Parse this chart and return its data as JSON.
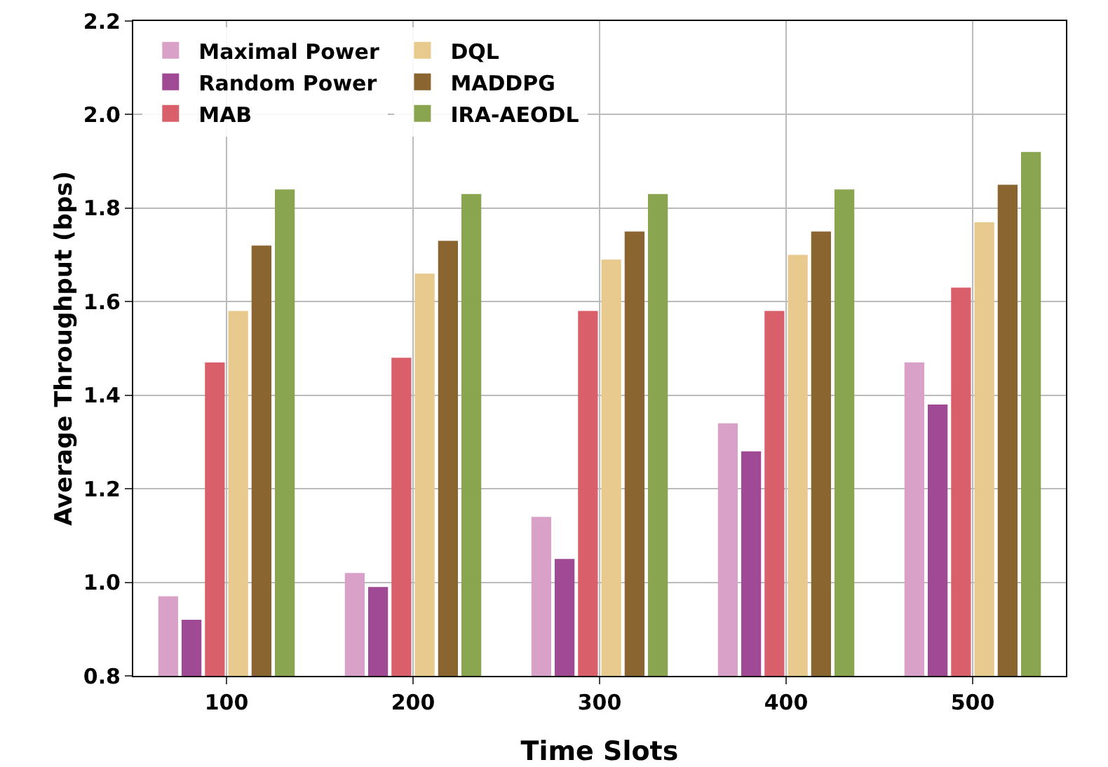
{
  "chart_data": {
    "type": "bar",
    "xlabel": "Time Slots",
    "ylabel": "Average Throughput (bps)",
    "categories": [
      "100",
      "200",
      "300",
      "400",
      "500"
    ],
    "series": [
      {
        "name": "Maximal Power",
        "color": "#d9a0c8",
        "values": [
          0.97,
          1.02,
          1.14,
          1.34,
          1.47
        ]
      },
      {
        "name": "Random Power",
        "color": "#a04a95",
        "values": [
          0.92,
          0.99,
          1.05,
          1.28,
          1.38
        ]
      },
      {
        "name": "MAB",
        "color": "#d95f6a",
        "values": [
          1.47,
          1.48,
          1.58,
          1.58,
          1.63
        ]
      },
      {
        "name": "DQL",
        "color": "#e8c98e",
        "values": [
          1.58,
          1.66,
          1.69,
          1.7,
          1.77
        ]
      },
      {
        "name": "MADDPG",
        "color": "#8b6530",
        "values": [
          1.72,
          1.73,
          1.75,
          1.75,
          1.85
        ]
      },
      {
        "name": "IRA-AEODL",
        "color": "#8aa550",
        "values": [
          1.84,
          1.83,
          1.83,
          1.84,
          1.92
        ]
      }
    ],
    "ylim": [
      0.8,
      2.2
    ],
    "yticks": [
      0.8,
      {
        "value": 1.0,
        "label": "1.0"
      },
      1.2,
      1.4,
      1.6,
      1.8,
      {
        "value": 2.0,
        "label": "2.0"
      },
      2.2
    ],
    "grid": true,
    "legend": "top left"
  }
}
